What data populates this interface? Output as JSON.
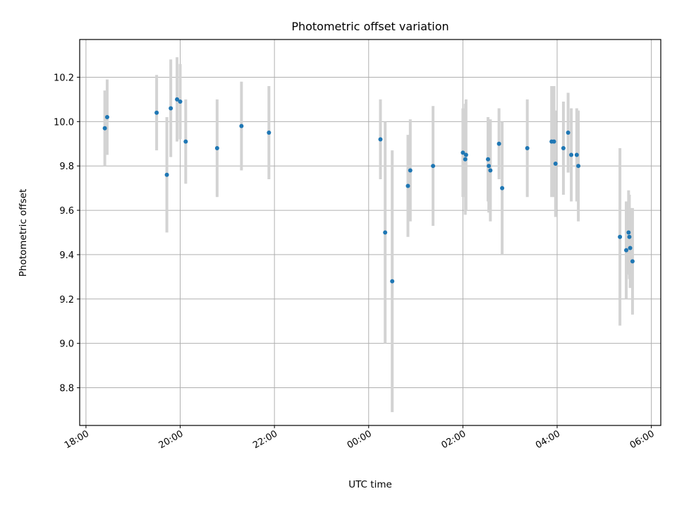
{
  "chart_data": {
    "type": "scatter",
    "title": "Photometric offset variation",
    "xlabel": "UTC time",
    "ylabel": "Photometric offset",
    "x_ticks": [
      "18:00",
      "20:00",
      "22:00",
      "00:00",
      "02:00",
      "04:00",
      "06:00"
    ],
    "y_ticks": [
      "8.8",
      "9.0",
      "9.2",
      "9.4",
      "9.6",
      "9.8",
      "10.0",
      "10.2"
    ],
    "xlim": [
      "17:52",
      "06:12"
    ],
    "ylim": [
      8.63,
      10.37
    ],
    "grid": true,
    "colors": {
      "point": "#1f77b4",
      "errorbar": "#d3d3d3",
      "grid": "#b0b0b0"
    },
    "points": [
      {
        "t": "18:24",
        "y": 9.97,
        "err": 0.17
      },
      {
        "t": "18:27",
        "y": 10.02,
        "err": 0.17
      },
      {
        "t": "19:30",
        "y": 10.04,
        "err": 0.17
      },
      {
        "t": "19:43",
        "y": 9.76,
        "err": 0.26
      },
      {
        "t": "19:48",
        "y": 10.06,
        "err": 0.22
      },
      {
        "t": "19:56",
        "y": 10.1,
        "err": 0.19
      },
      {
        "t": "20:00",
        "y": 10.09,
        "err": 0.17
      },
      {
        "t": "20:07",
        "y": 9.91,
        "err": 0.19
      },
      {
        "t": "20:47",
        "y": 9.88,
        "err": 0.22
      },
      {
        "t": "21:18",
        "y": 9.98,
        "err": 0.2
      },
      {
        "t": "21:53",
        "y": 9.95,
        "err": 0.21
      },
      {
        "t": "00:15",
        "y": 9.92,
        "err": 0.18
      },
      {
        "t": "00:21",
        "y": 9.5,
        "err": 0.5
      },
      {
        "t": "00:30",
        "y": 9.28,
        "err": 0.59
      },
      {
        "t": "00:50",
        "y": 9.71,
        "err": 0.23
      },
      {
        "t": "00:53",
        "y": 9.78,
        "err": 0.23
      },
      {
        "t": "01:22",
        "y": 9.8,
        "err": 0.27
      },
      {
        "t": "02:00",
        "y": 9.86,
        "err": 0.2
      },
      {
        "t": "02:03",
        "y": 9.83,
        "err": 0.25
      },
      {
        "t": "02:04",
        "y": 9.85,
        "err": 0.25
      },
      {
        "t": "02:32",
        "y": 9.83,
        "err": 0.19
      },
      {
        "t": "02:33",
        "y": 9.8,
        "err": 0.21
      },
      {
        "t": "02:35",
        "y": 9.78,
        "err": 0.23
      },
      {
        "t": "02:46",
        "y": 9.9,
        "err": 0.16
      },
      {
        "t": "02:50",
        "y": 9.7,
        "err": 0.3
      },
      {
        "t": "03:22",
        "y": 9.88,
        "err": 0.22
      },
      {
        "t": "03:53",
        "y": 9.91,
        "err": 0.25
      },
      {
        "t": "03:56",
        "y": 9.91,
        "err": 0.25
      },
      {
        "t": "03:58",
        "y": 9.81,
        "err": 0.24
      },
      {
        "t": "04:08",
        "y": 9.88,
        "err": 0.21
      },
      {
        "t": "04:14",
        "y": 9.95,
        "err": 0.18
      },
      {
        "t": "04:18",
        "y": 9.85,
        "err": 0.21
      },
      {
        "t": "04:25",
        "y": 9.85,
        "err": 0.21
      },
      {
        "t": "04:27",
        "y": 9.8,
        "err": 0.25
      },
      {
        "t": "05:20",
        "y": 9.48,
        "err": 0.4
      },
      {
        "t": "05:28",
        "y": 9.42,
        "err": 0.22
      },
      {
        "t": "05:31",
        "y": 9.5,
        "err": 0.19
      },
      {
        "t": "05:32",
        "y": 9.48,
        "err": 0.19
      },
      {
        "t": "05:33",
        "y": 9.43,
        "err": 0.18
      },
      {
        "t": "05:36",
        "y": 9.37,
        "err": 0.24
      }
    ]
  }
}
